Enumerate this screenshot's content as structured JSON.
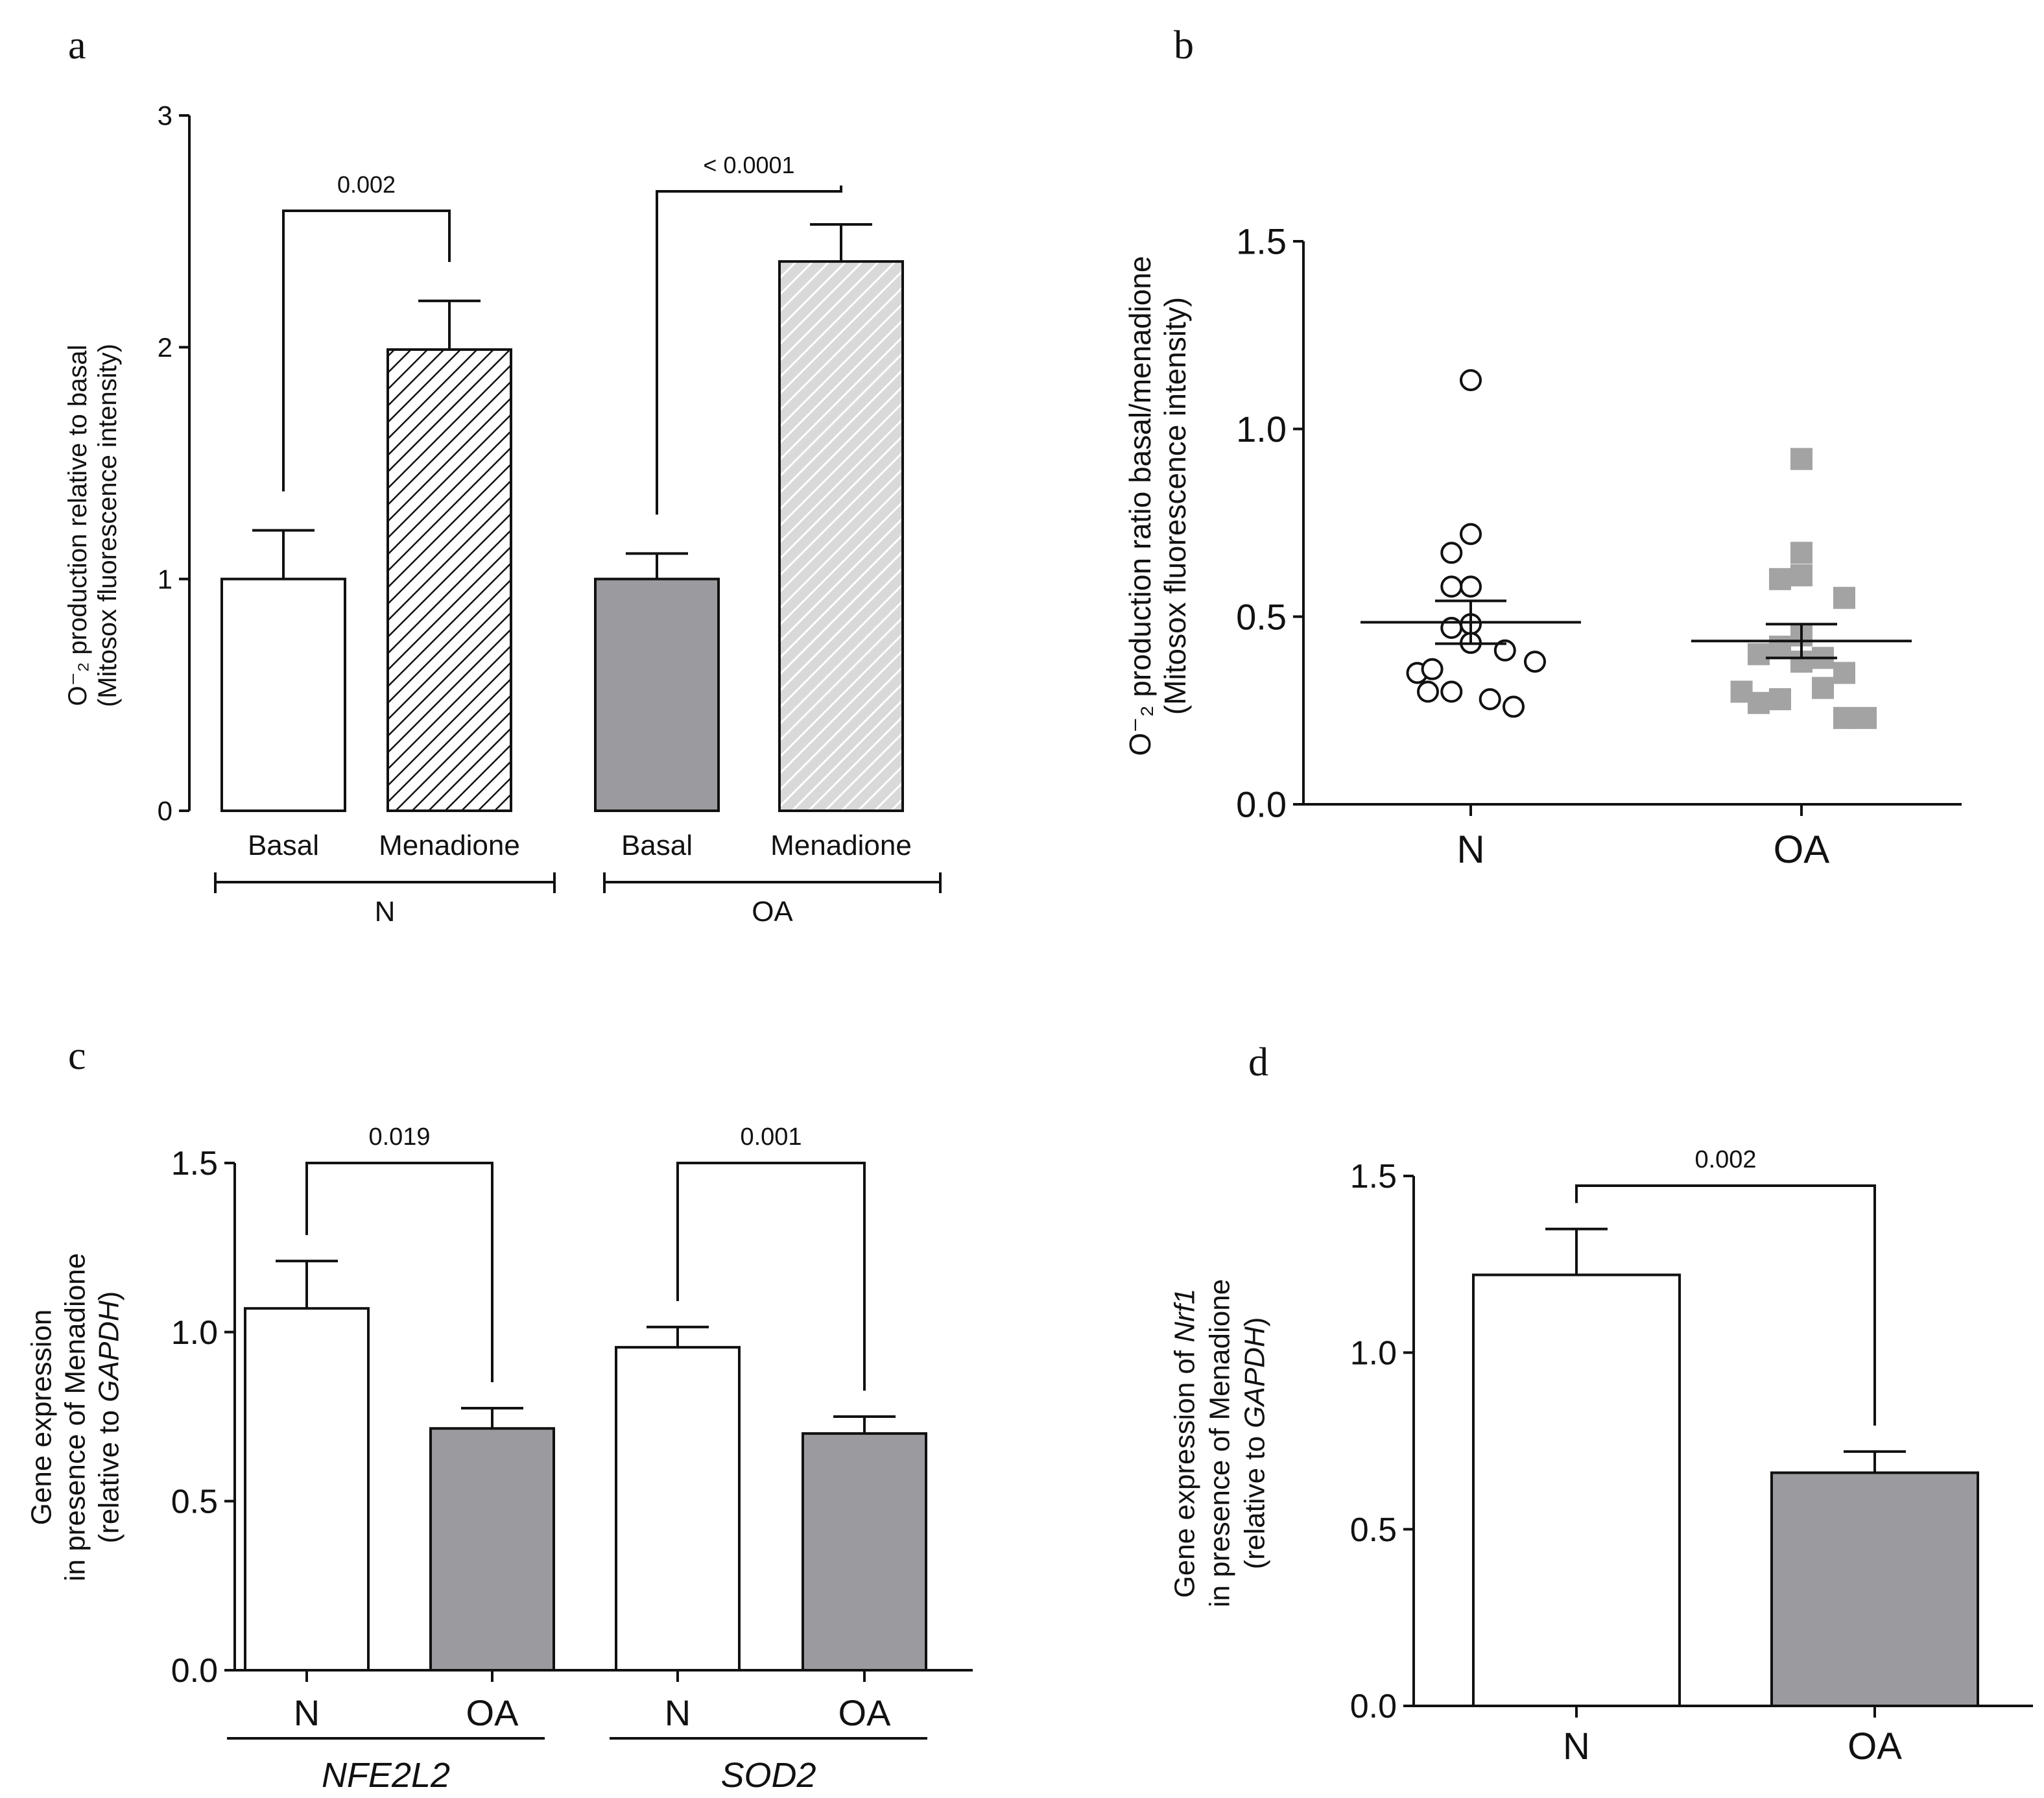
{
  "chart_data": [
    {
      "panel_label": "a",
      "type": "bar",
      "ylabel": [
        "O⁻₂ production relative to basal",
        "(Mitosox fluorescence intensity)"
      ],
      "ylim": [
        0,
        3
      ],
      "yticks": [
        "0",
        "1",
        "2",
        "3"
      ],
      "categories": [
        "Basal",
        "Menadione",
        "Basal",
        "Menadione"
      ],
      "groups": [
        {
          "name": "N",
          "bars": [
            0,
            1
          ]
        },
        {
          "name": "OA",
          "bars": [
            2,
            3
          ]
        }
      ],
      "values": [
        1.0,
        1.99,
        1.0,
        2.37
      ],
      "errors": [
        0.21,
        0.21,
        0.11,
        0.16
      ],
      "fills": [
        "white",
        "hatch-black",
        "gray",
        "hatch-light"
      ],
      "comparisons": [
        {
          "from": 0,
          "to": 1,
          "label": "0.002"
        },
        {
          "from": 2,
          "to": 3,
          "label": "< 0.0001"
        }
      ]
    },
    {
      "panel_label": "b",
      "type": "scatter",
      "ylabel": [
        "O⁻₂ production ratio basal/menadione",
        "(Mitosox fluorescence intensity)"
      ],
      "ylim": [
        0,
        1.5
      ],
      "yticks": [
        "0.0",
        "0.5",
        "1.0",
        "1.5"
      ],
      "categories": [
        "N",
        "OA"
      ],
      "series": [
        {
          "category": "N",
          "marker": "open-circle",
          "points": [
            [
              0.0,
              1.13
            ],
            [
              0.0,
              0.72
            ],
            [
              -0.09,
              0.67
            ],
            [
              0.0,
              0.58
            ],
            [
              -0.09,
              0.58
            ],
            [
              0.0,
              0.48
            ],
            [
              -0.09,
              0.47
            ],
            [
              0.0,
              0.43
            ],
            [
              -0.25,
              0.35
            ],
            [
              -0.18,
              0.36
            ],
            [
              0.3,
              0.38
            ],
            [
              0.16,
              0.41
            ],
            [
              -0.2,
              0.3
            ],
            [
              -0.09,
              0.3
            ],
            [
              0.09,
              0.28
            ],
            [
              0.2,
              0.26
            ]
          ],
          "mean": 0.485,
          "sem": 0.057
        },
        {
          "category": "OA",
          "marker": "gray-square",
          "points": [
            [
              0.0,
              0.92
            ],
            [
              0.0,
              0.67
            ],
            [
              -0.1,
              0.6
            ],
            [
              0.0,
              0.61
            ],
            [
              0.2,
              0.55
            ],
            [
              0.0,
              0.45
            ],
            [
              -0.1,
              0.42
            ],
            [
              -0.2,
              0.4
            ],
            [
              0.0,
              0.38
            ],
            [
              0.1,
              0.39
            ],
            [
              -0.28,
              0.3
            ],
            [
              -0.2,
              0.27
            ],
            [
              -0.1,
              0.28
            ],
            [
              0.1,
              0.31
            ],
            [
              0.2,
              0.35
            ],
            [
              0.2,
              0.23
            ],
            [
              0.3,
              0.23
            ]
          ],
          "mean": 0.435,
          "sem": 0.045
        }
      ]
    },
    {
      "panel_label": "c",
      "type": "bar",
      "ylabel": [
        "Gene expression",
        "in presence of Menadione",
        "(relative to GAPDH)"
      ],
      "ylim": [
        0,
        1.5
      ],
      "yticks": [
        "0.0",
        "0.5",
        "1.0",
        "1.5"
      ],
      "categories": [
        "N",
        "OA",
        "N",
        "OA"
      ],
      "groups": [
        {
          "name": "NFE2L2",
          "bars": [
            0,
            1
          ]
        },
        {
          "name": "SOD2",
          "bars": [
            2,
            3
          ]
        }
      ],
      "values": [
        1.07,
        0.715,
        0.955,
        0.7
      ],
      "errors": [
        0.14,
        0.06,
        0.06,
        0.05
      ],
      "fills": [
        "white",
        "gray",
        "white",
        "gray"
      ],
      "comparisons": [
        {
          "from": 0,
          "to": 1,
          "label": "0.019"
        },
        {
          "from": 2,
          "to": 3,
          "label": "0.001"
        }
      ]
    },
    {
      "panel_label": "d",
      "type": "bar",
      "ylabel": [
        "Gene expression of Nrf1",
        "in presence of Menadione",
        "(relative to GAPDH)"
      ],
      "ylim": [
        0,
        1.5
      ],
      "yticks": [
        "0.0",
        "0.5",
        "1.0",
        "1.5"
      ],
      "categories": [
        "N",
        "OA"
      ],
      "values": [
        1.22,
        0.66
      ],
      "errors": [
        0.13,
        0.06
      ],
      "fills": [
        "white",
        "gray"
      ],
      "comparisons": [
        {
          "from": 0,
          "to": 1,
          "label": "0.002"
        }
      ]
    }
  ]
}
